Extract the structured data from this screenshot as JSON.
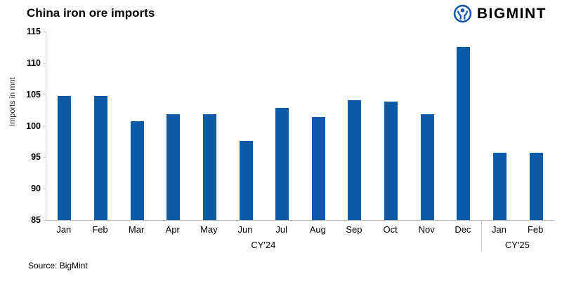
{
  "header": {
    "title": "China iron ore imports",
    "brand": "BIGMINT",
    "brand_color": "#1458a7"
  },
  "chart_data": {
    "type": "bar",
    "categories": [
      "Jan",
      "Feb",
      "Mar",
      "Apr",
      "May",
      "Jun",
      "Jul",
      "Aug",
      "Sep",
      "Oct",
      "Nov",
      "Dec",
      "Jan",
      "Feb"
    ],
    "values": [
      104.7,
      104.7,
      100.7,
      101.8,
      101.8,
      97.6,
      102.9,
      101.4,
      104.1,
      103.9,
      101.8,
      112.5,
      95.7,
      95.7
    ],
    "groups": [
      {
        "label": "CY'24",
        "span": 12
      },
      {
        "label": "CY'25",
        "span": 2
      }
    ],
    "title": "China iron ore imports",
    "xlabel": "",
    "ylabel": "Imports in mnt",
    "ylim": [
      85,
      115
    ],
    "yticks": [
      85,
      90,
      95,
      100,
      105,
      110,
      115
    ],
    "bar_color": "#0b5aa5",
    "grid": false,
    "legend_position": "none"
  },
  "footer": {
    "source": "Source: BigMint"
  }
}
